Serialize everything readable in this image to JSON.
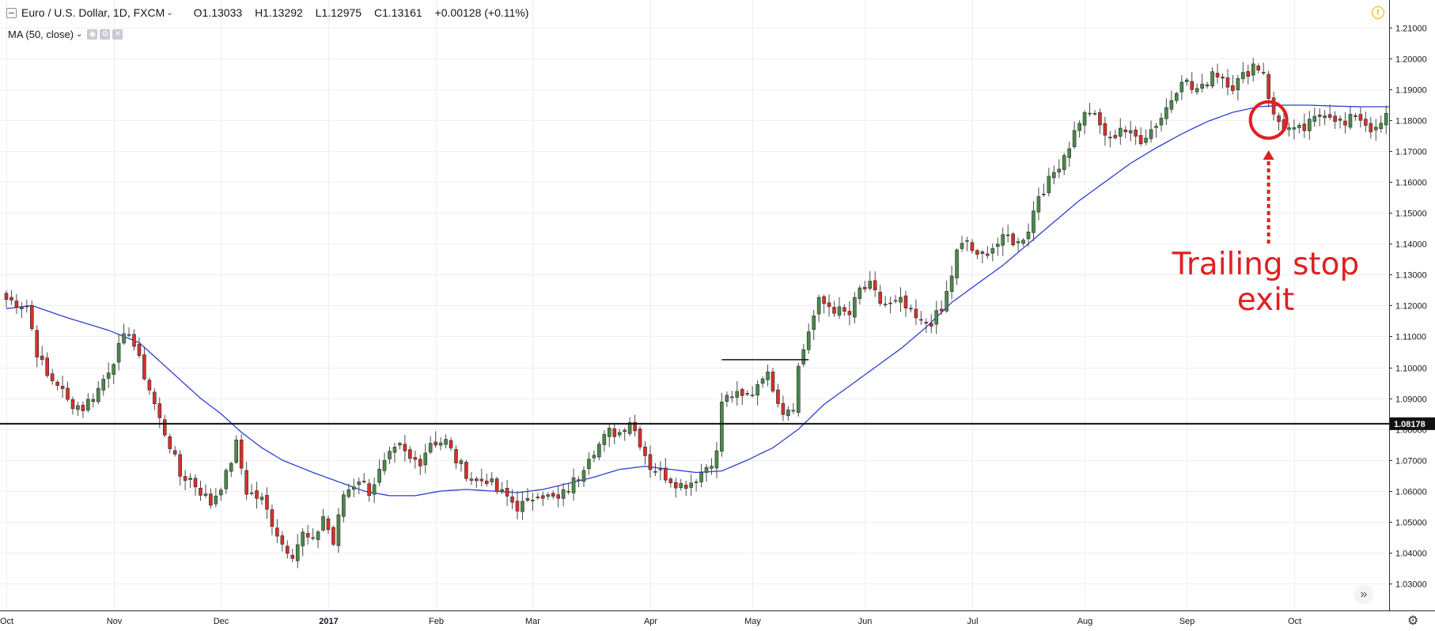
{
  "header": {
    "symbol": "Euro / U.S. Dollar, 1D, FXCM",
    "open": "O1.13033",
    "high": "H1.13292",
    "low": "L1.12975",
    "close": "C1.13161",
    "change": "+0.00128 (+0.11%)"
  },
  "indicator": {
    "label": "MA (50, close)"
  },
  "annotation": {
    "line1": "Trailing stop",
    "line2": "exit"
  },
  "colors": {
    "up": "#4a8a4a",
    "down": "#d9302c",
    "ma": "#2f3fd0",
    "annotation": "#e02020",
    "grid": "#eceff3"
  },
  "chart_data": {
    "type": "candlestick",
    "instrument": "EUR/USD",
    "timeframe": "1D",
    "ylim": [
      1.025,
      1.2115
    ],
    "y_ticks": [
      "1.21000",
      "1.20000",
      "1.19000",
      "1.18000",
      "1.17000",
      "1.16000",
      "1.15000",
      "1.14000",
      "1.13000",
      "1.12000",
      "1.11000",
      "1.10000",
      "1.09000",
      "1.08000",
      "1.07000",
      "1.06000",
      "1.05000",
      "1.04000",
      "1.03000"
    ],
    "x_ticks": [
      {
        "label": "Oct",
        "x": 0
      },
      {
        "label": "Nov",
        "x": 21
      },
      {
        "label": "Dec",
        "x": 42
      },
      {
        "label": "2017",
        "x": 63
      },
      {
        "label": "Feb",
        "x": 84
      },
      {
        "label": "Mar",
        "x": 103
      },
      {
        "label": "Apr",
        "x": 126
      },
      {
        "label": "May",
        "x": 146
      },
      {
        "label": "Jun",
        "x": 168
      },
      {
        "label": "Jul",
        "x": 189
      },
      {
        "label": "Aug",
        "x": 211
      },
      {
        "label": "Sep",
        "x": 231
      },
      {
        "label": "Oct",
        "x": 252
      }
    ],
    "horizontal_line": {
      "value": 1.08178,
      "label": "1.08178"
    },
    "resistance_segment": {
      "value": 1.1025,
      "x_start": 140,
      "x_end": 157
    },
    "anchors": [
      [
        0,
        1.122
      ],
      [
        4,
        1.12
      ],
      [
        6,
        1.105
      ],
      [
        8,
        1.097
      ],
      [
        10,
        1.095
      ],
      [
        12,
        1.089
      ],
      [
        15,
        1.087
      ],
      [
        18,
        1.093
      ],
      [
        22,
        1.106
      ],
      [
        24,
        1.112
      ],
      [
        26,
        1.102
      ],
      [
        28,
        1.093
      ],
      [
        30,
        1.083
      ],
      [
        32,
        1.075
      ],
      [
        34,
        1.065
      ],
      [
        36,
        1.064
      ],
      [
        38,
        1.06
      ],
      [
        40,
        1.056
      ],
      [
        43,
        1.065
      ],
      [
        45,
        1.075
      ],
      [
        47,
        1.06
      ],
      [
        50,
        1.057
      ],
      [
        52,
        1.05
      ],
      [
        54,
        1.043
      ],
      [
        56,
        1.04
      ],
      [
        58,
        1.046
      ],
      [
        60,
        1.043
      ],
      [
        62,
        1.052
      ],
      [
        64,
        1.043
      ],
      [
        66,
        1.059
      ],
      [
        69,
        1.064
      ],
      [
        71,
        1.06
      ],
      [
        73,
        1.066
      ],
      [
        75,
        1.071
      ],
      [
        77,
        1.074
      ],
      [
        79,
        1.07
      ],
      [
        81,
        1.07
      ],
      [
        83,
        1.076
      ],
      [
        86,
        1.076
      ],
      [
        88,
        1.07
      ],
      [
        90,
        1.066
      ],
      [
        92,
        1.063
      ],
      [
        94,
        1.064
      ],
      [
        96,
        1.06
      ],
      [
        98,
        1.058
      ],
      [
        100,
        1.055
      ],
      [
        102,
        1.056
      ],
      [
        104,
        1.06
      ],
      [
        106,
        1.058
      ],
      [
        108,
        1.057
      ],
      [
        110,
        1.061
      ],
      [
        112,
        1.065
      ],
      [
        114,
        1.072
      ],
      [
        116,
        1.075
      ],
      [
        118,
        1.079
      ],
      [
        120,
        1.079
      ],
      [
        122,
        1.083
      ],
      [
        124,
        1.076
      ],
      [
        126,
        1.068
      ],
      [
        128,
        1.066
      ],
      [
        130,
        1.064
      ],
      [
        132,
        1.062
      ],
      [
        134,
        1.063
      ],
      [
        136,
        1.066
      ],
      [
        138,
        1.07
      ],
      [
        139,
        1.072
      ],
      [
        140,
        1.089
      ],
      [
        142,
        1.091
      ],
      [
        144,
        1.09
      ],
      [
        146,
        1.092
      ],
      [
        148,
        1.098
      ],
      [
        149,
        1.097
      ],
      [
        150,
        1.094
      ],
      [
        152,
        1.086
      ],
      [
        154,
        1.088
      ],
      [
        155,
        1.1
      ],
      [
        157,
        1.112
      ],
      [
        159,
        1.121
      ],
      [
        161,
        1.12
      ],
      [
        163,
        1.118
      ],
      [
        165,
        1.117
      ],
      [
        167,
        1.125
      ],
      [
        169,
        1.126
      ],
      [
        171,
        1.121
      ],
      [
        173,
        1.12
      ],
      [
        175,
        1.121
      ],
      [
        177,
        1.117
      ],
      [
        179,
        1.114
      ],
      [
        181,
        1.115
      ],
      [
        183,
        1.118
      ],
      [
        185,
        1.13
      ],
      [
        186,
        1.137
      ],
      [
        188,
        1.141
      ],
      [
        190,
        1.135
      ],
      [
        192,
        1.138
      ],
      [
        194,
        1.14
      ],
      [
        196,
        1.142
      ],
      [
        198,
        1.14
      ],
      [
        200,
        1.145
      ],
      [
        202,
        1.156
      ],
      [
        204,
        1.16
      ],
      [
        206,
        1.166
      ],
      [
        208,
        1.172
      ],
      [
        210,
        1.18
      ],
      [
        212,
        1.183
      ],
      [
        214,
        1.178
      ],
      [
        216,
        1.173
      ],
      [
        218,
        1.178
      ],
      [
        220,
        1.175
      ],
      [
        222,
        1.174
      ],
      [
        224,
        1.177
      ],
      [
        226,
        1.181
      ],
      [
        228,
        1.187
      ],
      [
        230,
        1.194
      ],
      [
        232,
        1.19
      ],
      [
        234,
        1.19
      ],
      [
        236,
        1.196
      ],
      [
        238,
        1.194
      ],
      [
        240,
        1.191
      ],
      [
        242,
        1.194
      ],
      [
        244,
        1.198
      ],
      [
        246,
        1.196
      ],
      [
        247,
        1.188
      ],
      [
        248,
        1.181
      ],
      [
        250,
        1.178
      ],
      [
        252,
        1.176
      ],
      [
        254,
        1.177
      ],
      [
        256,
        1.18
      ],
      [
        258,
        1.183
      ],
      [
        260,
        1.181
      ],
      [
        262,
        1.178
      ],
      [
        264,
        1.182
      ],
      [
        266,
        1.179
      ],
      [
        268,
        1.176
      ],
      [
        270,
        1.181
      ],
      [
        271,
        1.17
      ],
      [
        272,
        1.162
      ],
      [
        273,
        1.164
      ]
    ],
    "ma_anchors": [
      [
        0,
        1.119
      ],
      [
        5,
        1.12
      ],
      [
        12,
        1.116
      ],
      [
        20,
        1.112
      ],
      [
        26,
        1.108
      ],
      [
        30,
        1.102
      ],
      [
        34,
        1.096
      ],
      [
        38,
        1.09
      ],
      [
        42,
        1.085
      ],
      [
        46,
        1.079
      ],
      [
        50,
        1.074
      ],
      [
        54,
        1.07
      ],
      [
        60,
        1.066
      ],
      [
        65,
        1.063
      ],
      [
        70,
        1.06
      ],
      [
        75,
        1.0585
      ],
      [
        80,
        1.0585
      ],
      [
        85,
        1.06
      ],
      [
        90,
        1.0605
      ],
      [
        95,
        1.06
      ],
      [
        100,
        1.0595
      ],
      [
        105,
        1.0605
      ],
      [
        110,
        1.0625
      ],
      [
        115,
        1.0645
      ],
      [
        120,
        1.067
      ],
      [
        125,
        1.068
      ],
      [
        130,
        1.067
      ],
      [
        135,
        1.066
      ],
      [
        140,
        1.0665
      ],
      [
        145,
        1.07
      ],
      [
        150,
        1.074
      ],
      [
        155,
        1.08
      ],
      [
        160,
        1.088
      ],
      [
        165,
        1.094
      ],
      [
        170,
        1.1
      ],
      [
        175,
        1.106
      ],
      [
        180,
        1.113
      ],
      [
        185,
        1.121
      ],
      [
        190,
        1.127
      ],
      [
        195,
        1.133
      ],
      [
        200,
        1.14
      ],
      [
        205,
        1.147
      ],
      [
        210,
        1.154
      ],
      [
        215,
        1.16
      ],
      [
        220,
        1.166
      ],
      [
        225,
        1.171
      ],
      [
        230,
        1.1755
      ],
      [
        235,
        1.1795
      ],
      [
        240,
        1.1825
      ],
      [
        245,
        1.1843
      ],
      [
        250,
        1.1848
      ],
      [
        255,
        1.1848
      ],
      [
        260,
        1.1845
      ],
      [
        265,
        1.1843
      ],
      [
        270,
        1.1843
      ],
      [
        273,
        1.1838
      ]
    ],
    "exit_marker": {
      "bar": 247,
      "value": 1.18
    }
  }
}
